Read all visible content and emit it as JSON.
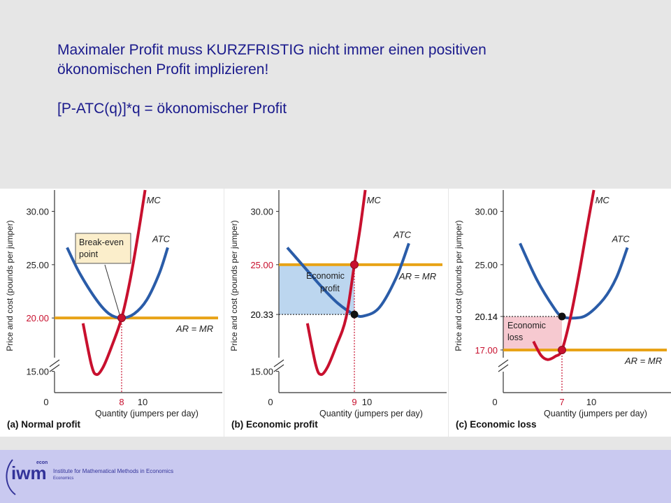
{
  "headline": {
    "line1": "Maximaler Profit muss KURZFRISTIG nicht immer einen positiven",
    "line2": "ökonomischen  Profit implizieren!",
    "line3": "[P-ATC(q)]*q = ökonomischer Profit"
  },
  "colors": {
    "mc": "#c8102e",
    "atc": "#2a5ca8",
    "ar_mr": "#e8a317",
    "profit_fill": "#bcd6ef",
    "loss_fill": "#f6c9d0",
    "callout_fill": "#fbeecb",
    "title_text": "#1a1a8c",
    "footer_bg": "#c9c9f0"
  },
  "chart_data": [
    {
      "type": "line",
      "panel_label": "(a) Normal profit",
      "ylabel": "Price and cost (pounds per jumper)",
      "xlabel": "Quantity (jumpers per day)",
      "yticks": [
        "15.00",
        "20.00",
        "25.00",
        "30.00"
      ],
      "xticks": [
        "0",
        "8",
        "10"
      ],
      "ylim": [
        13,
        32
      ],
      "xlim": [
        0,
        20
      ],
      "price": 20.0,
      "price_label": "20.00",
      "q_star": 8,
      "q_label": "8",
      "atc_min": {
        "q": 8,
        "cost": 20.0
      },
      "atc_cost_at_q": 20.0,
      "series": [
        {
          "name": "MC",
          "points": [
            [
              3.4,
              19.5
            ],
            [
              4.4,
              15.6
            ],
            [
              5.0,
              14.7
            ],
            [
              5.8,
              15.4
            ],
            [
              6.8,
              17.3
            ],
            [
              8.0,
              20.0
            ],
            [
              9.0,
              23.5
            ],
            [
              10.0,
              28.0
            ],
            [
              10.8,
              32.0
            ]
          ]
        },
        {
          "name": "ATC",
          "points": [
            [
              1.5,
              26.6
            ],
            [
              3.0,
              24.2
            ],
            [
              5.0,
              21.7
            ],
            [
              6.5,
              20.4
            ],
            [
              8.0,
              20.0
            ],
            [
              9.5,
              20.4
            ],
            [
              11.0,
              21.7
            ],
            [
              12.5,
              24.2
            ],
            [
              13.5,
              26.6
            ]
          ]
        },
        {
          "name": "AR = MR",
          "points": [
            [
              0,
              20.0
            ],
            [
              19.5,
              20.0
            ]
          ]
        }
      ],
      "annotations": [
        {
          "text": "Break-even",
          "type": "callout"
        },
        {
          "text": "point",
          "type": "callout"
        }
      ]
    },
    {
      "type": "line",
      "panel_label": "(b) Economic profit",
      "ylabel": "Price and cost (pounds per jumper)",
      "xlabel": "Quantity (jumpers per day)",
      "yticks": [
        "15.00",
        "20.33",
        "25.00",
        "30.00"
      ],
      "xticks": [
        "0",
        "9",
        "10"
      ],
      "ylim": [
        13,
        32
      ],
      "xlim": [
        0,
        20
      ],
      "price": 25.0,
      "price_label": "25.00",
      "q_star": 9,
      "q_label": "9",
      "atc_min": {
        "q": 10.2,
        "cost": 20.2
      },
      "atc_cost_at_q": 20.33,
      "series": [
        {
          "name": "MC",
          "points": [
            [
              3.4,
              19.5
            ],
            [
              4.4,
              15.6
            ],
            [
              5.0,
              14.7
            ],
            [
              5.8,
              15.4
            ],
            [
              6.8,
              17.3
            ],
            [
              8.0,
              20.0
            ],
            [
              9.0,
              25.0
            ],
            [
              9.7,
              28.5
            ],
            [
              10.3,
              32.0
            ]
          ]
        },
        {
          "name": "ATC",
          "points": [
            [
              1.0,
              26.6
            ],
            [
              3.0,
              24.8
            ],
            [
              5.0,
              23.0
            ],
            [
              7.0,
              21.4
            ],
            [
              9.0,
              20.33
            ],
            [
              10.2,
              20.2
            ],
            [
              12.0,
              21.0
            ],
            [
              14.0,
              23.8
            ],
            [
              15.5,
              27.0
            ]
          ]
        },
        {
          "name": "AR = MR",
          "points": [
            [
              0,
              25.0
            ],
            [
              19.5,
              25.0
            ]
          ]
        }
      ],
      "annotations": [
        {
          "text": "Economic",
          "type": "region"
        },
        {
          "text": "profit",
          "type": "region"
        }
      ]
    },
    {
      "type": "line",
      "panel_label": "(c) Economic loss",
      "ylabel": "Price and cost (pounds per jumper)",
      "xlabel": "Quantity (jumpers per day)",
      "yticks": [
        "17.00",
        "20.14",
        "25.00",
        "30.00"
      ],
      "xticks": [
        "0",
        "7",
        "10"
      ],
      "ylim": [
        13,
        32
      ],
      "xlim": [
        0,
        20
      ],
      "price": 17.0,
      "price_label": "17.00",
      "q_star": 7,
      "q_label": "7",
      "atc_min": {
        "q": 8.5,
        "cost": 20.0
      },
      "atc_cost_at_q": 20.14,
      "series": [
        {
          "name": "MC",
          "points": [
            [
              3.6,
              17.8
            ],
            [
              4.5,
              16.5
            ],
            [
              5.3,
              16.1
            ],
            [
              6.2,
              16.4
            ],
            [
              7.0,
              17.0
            ],
            [
              8.0,
              20.0
            ],
            [
              9.0,
              24.0
            ],
            [
              10.0,
              28.5
            ],
            [
              10.8,
              32.0
            ]
          ]
        },
        {
          "name": "ATC",
          "points": [
            [
              2.0,
              27.0
            ],
            [
              4.0,
              23.6
            ],
            [
              6.0,
              21.0
            ],
            [
              7.0,
              20.14
            ],
            [
              8.5,
              20.0
            ],
            [
              10.0,
              20.3
            ],
            [
              12.0,
              21.8
            ],
            [
              13.5,
              23.8
            ],
            [
              14.8,
              26.6
            ]
          ]
        },
        {
          "name": "AR = MR",
          "points": [
            [
              0,
              17.0
            ],
            [
              19.5,
              17.0
            ]
          ]
        }
      ],
      "annotations": [
        {
          "text": "Economic",
          "type": "region"
        },
        {
          "text": "loss",
          "type": "region"
        }
      ]
    }
  ],
  "footer": {
    "logo_text": "iwm",
    "logo_econ": "econ",
    "institute": "Institute for Mathematical Methods in Economics",
    "subline": "Economics"
  }
}
